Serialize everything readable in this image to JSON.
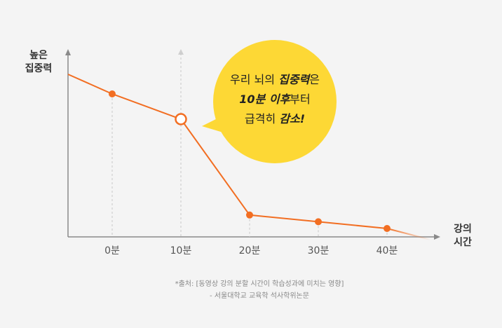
{
  "chart_data": {
    "type": "line",
    "ylabel_lines": [
      "높은",
      "집중력"
    ],
    "xlabel_lines": [
      "강의",
      "시간"
    ],
    "categories": [
      "0분",
      "10분",
      "20분",
      "30분",
      "40분"
    ],
    "x": [
      0,
      10,
      20,
      30,
      40
    ],
    "values": [
      85,
      70,
      13,
      9,
      5
    ],
    "highlight_index": 1,
    "grid": false,
    "colors": {
      "line": "#f26e22",
      "marker": "#f26e22",
      "bubble": "#fdd835",
      "axis": "#8a8a8a"
    }
  },
  "callout": {
    "line1_a": "우리 뇌의 ",
    "line1_b": "집중력",
    "line1_c": "은",
    "line2_a": "10분 이후",
    "line2_b": "부터",
    "line3_a": "급격히 ",
    "line3_b": "감소!"
  },
  "source": {
    "line1": "*출처: [동영상 강의 분할 시간이 학습성과에 미치는 영향]",
    "line2": "- 서울대학교 교육학 석사학위논문"
  }
}
